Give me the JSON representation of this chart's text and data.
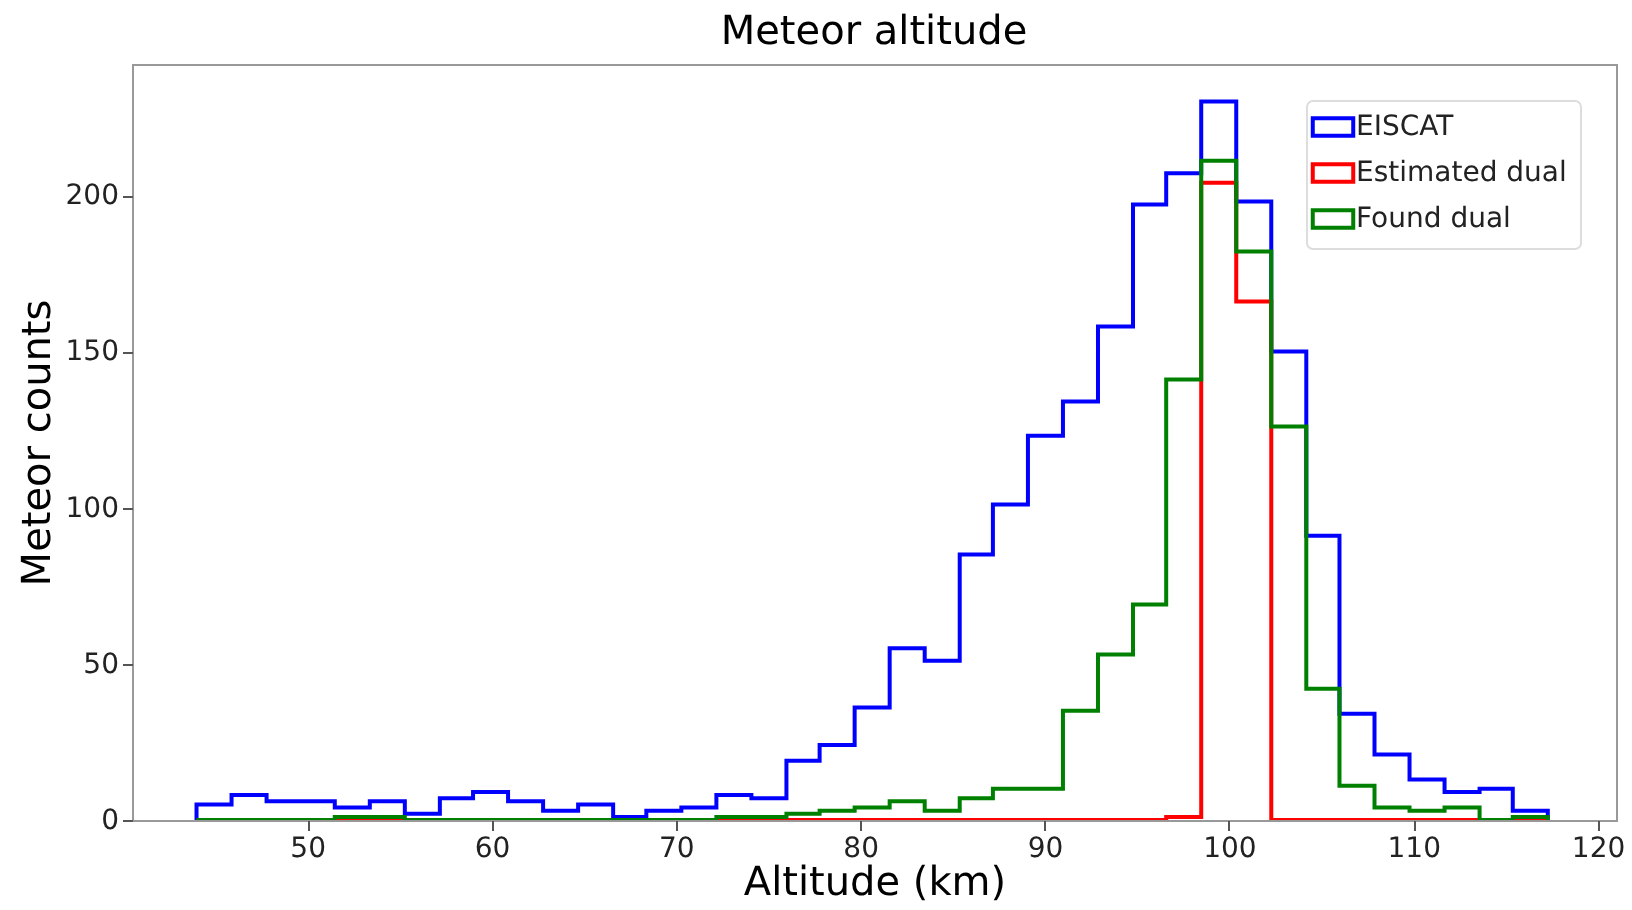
{
  "chart_data": {
    "type": "histogram",
    "title": "Meteor altitude",
    "xlabel": "Altitude (km)",
    "ylabel": "Meteor counts",
    "bins": [
      44.0,
      45.9,
      47.8,
      49.6,
      51.5,
      53.4,
      55.3,
      57.2,
      59.0,
      60.9,
      62.8,
      64.7,
      66.6,
      68.4,
      70.3,
      72.2,
      74.1,
      76.0,
      77.8,
      79.7,
      81.6,
      83.5,
      85.4,
      87.2,
      89.1,
      91.0,
      92.9,
      94.8,
      96.6,
      98.5,
      100.4,
      102.3,
      104.2,
      106.0,
      107.9,
      109.8,
      111.7,
      113.6,
      115.4,
      117.3
    ],
    "series": [
      {
        "name": "EISCAT",
        "color": "#0000ff",
        "values": [
          5,
          8,
          6,
          6,
          4,
          6,
          2,
          7,
          9,
          6,
          3,
          5,
          1,
          3,
          4,
          8,
          7,
          19,
          24,
          36,
          55,
          51,
          85,
          101,
          123,
          134,
          158,
          197,
          207,
          230,
          198,
          150,
          91,
          34,
          21,
          13,
          9,
          10,
          3
        ]
      },
      {
        "name": "Estimated dual",
        "color": "#ff0000",
        "values": [
          0,
          0,
          0,
          0,
          0,
          0,
          0,
          0,
          0,
          0,
          0,
          0,
          0,
          0,
          0,
          0,
          0,
          0,
          0,
          0,
          0,
          0,
          0,
          0,
          0,
          0,
          0,
          0,
          1,
          204,
          166,
          0,
          0,
          0,
          0,
          0,
          0,
          0,
          0
        ]
      },
      {
        "name": "Found dual",
        "color": "#008000",
        "values": [
          0,
          0,
          0,
          0,
          1,
          1,
          0,
          0,
          0,
          0,
          0,
          0,
          0,
          0,
          0,
          1,
          1,
          2,
          3,
          4,
          6,
          3,
          7,
          10,
          10,
          35,
          53,
          69,
          141,
          211,
          182,
          126,
          42,
          11,
          4,
          3,
          4,
          0,
          1
        ]
      }
    ],
    "xlim": [
      40.5,
      121
    ],
    "xticks": [
      50,
      60,
      70,
      80,
      90,
      100,
      110,
      120
    ],
    "ylim": [
      0,
      242
    ],
    "yticks": [
      0,
      50,
      100,
      150,
      200
    ],
    "legend": "top right"
  }
}
